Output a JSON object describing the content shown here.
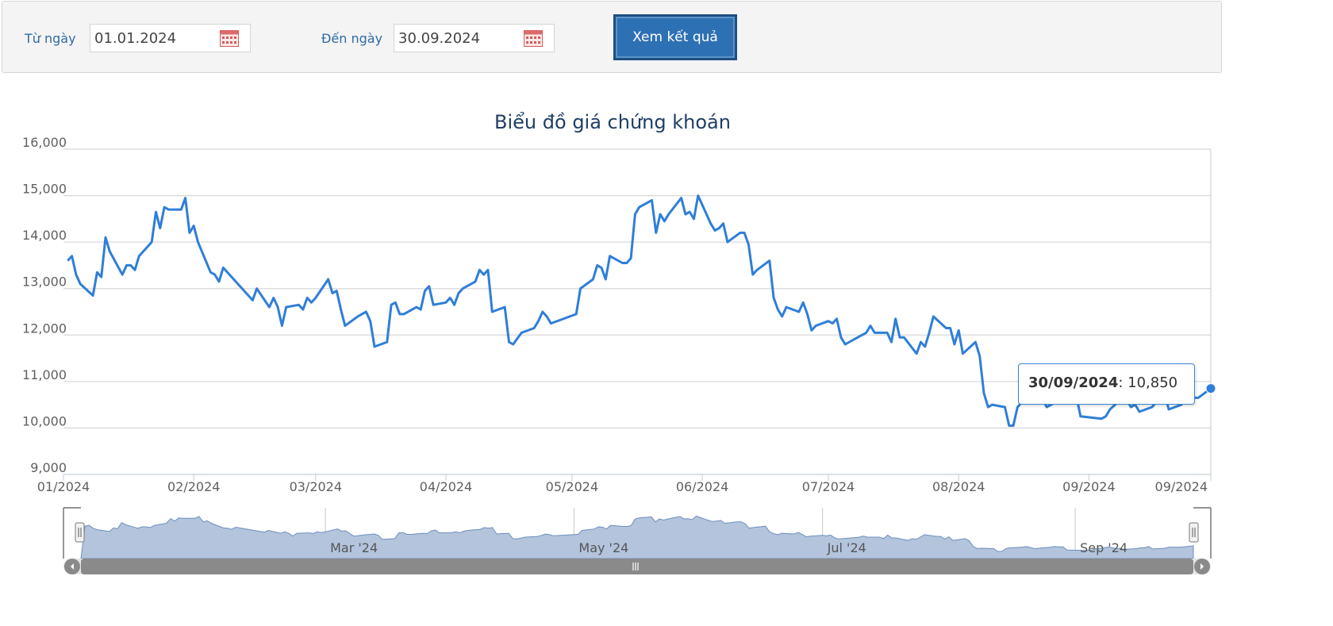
{
  "filter": {
    "from_label": "Từ ngày",
    "from_value": "01.01.2024",
    "to_label": "Đến ngày",
    "to_value": "30.09.2024",
    "submit_label": "Xem kết quả",
    "calendar_icon": "calendar-icon"
  },
  "tooltip": {
    "date": "30/09/2024",
    "separator": ":",
    "value": "10,850"
  },
  "navigator": {
    "labels": [
      "Mar '24",
      "May '24",
      "Jul '24",
      "Sep '24"
    ],
    "handle_icon": "grip-icon",
    "scroll_left_icon": "arrow-left-icon",
    "scroll_right_icon": "arrow-right-icon"
  },
  "colors": {
    "line": "#2f7ed8",
    "navigator_fill": "#b3c4dc",
    "title": "#1f3e63",
    "accent": "#2e70b4"
  },
  "chart_data": {
    "type": "line",
    "title": "Biểu đồ giá chứng khoán",
    "ylim": [
      9000,
      16000
    ],
    "yticks": [
      9000,
      10000,
      11000,
      12000,
      13000,
      14000,
      15000,
      16000
    ],
    "ytick_labels": [
      "9,000",
      "10,000",
      "11,000",
      "12,000",
      "13,000",
      "14,000",
      "15,000",
      "16,000"
    ],
    "xlim": [
      "2024-01-01",
      "2024-09-30"
    ],
    "xticks": [
      {
        "date": "2024-01-01",
        "label": "01/2024"
      },
      {
        "date": "2024-02-01",
        "label": "02/2024"
      },
      {
        "date": "2024-03-01",
        "label": "03/2024"
      },
      {
        "date": "2024-04-01",
        "label": "04/2024"
      },
      {
        "date": "2024-05-01",
        "label": "05/2024"
      },
      {
        "date": "2024-06-01",
        "label": "06/2024"
      },
      {
        "date": "2024-07-01",
        "label": "07/2024"
      },
      {
        "date": "2024-08-01",
        "label": "08/2024"
      },
      {
        "date": "2024-09-01",
        "label": "09/2024"
      },
      {
        "date": "2024-09-30",
        "label": "09/2024"
      }
    ],
    "grid": true,
    "legend": "none",
    "series": [
      {
        "dates": [
          "2024-01-02",
          "2024-01-03",
          "2024-01-04",
          "2024-01-05",
          "2024-01-08",
          "2024-01-09",
          "2024-01-10",
          "2024-01-11",
          "2024-01-12",
          "2024-01-15",
          "2024-01-16",
          "2024-01-17",
          "2024-01-18",
          "2024-01-19",
          "2024-01-22",
          "2024-01-23",
          "2024-01-24",
          "2024-01-25",
          "2024-01-26",
          "2024-01-29",
          "2024-01-30",
          "2024-01-31",
          "2024-02-01",
          "2024-02-02",
          "2024-02-05",
          "2024-02-06",
          "2024-02-07",
          "2024-02-08",
          "2024-02-15",
          "2024-02-16",
          "2024-02-19",
          "2024-02-20",
          "2024-02-21",
          "2024-02-22",
          "2024-02-23",
          "2024-02-26",
          "2024-02-27",
          "2024-02-28",
          "2024-02-29",
          "2024-03-01",
          "2024-03-04",
          "2024-03-05",
          "2024-03-06",
          "2024-03-07",
          "2024-03-08",
          "2024-03-11",
          "2024-03-12",
          "2024-03-13",
          "2024-03-14",
          "2024-03-15",
          "2024-03-18",
          "2024-03-19",
          "2024-03-20",
          "2024-03-21",
          "2024-03-22",
          "2024-03-25",
          "2024-03-26",
          "2024-03-27",
          "2024-03-28",
          "2024-03-29",
          "2024-04-01",
          "2024-04-02",
          "2024-04-03",
          "2024-04-04",
          "2024-04-05",
          "2024-04-08",
          "2024-04-09",
          "2024-04-10",
          "2024-04-11",
          "2024-04-12",
          "2024-04-15",
          "2024-04-16",
          "2024-04-17",
          "2024-04-19",
          "2024-04-22",
          "2024-04-23",
          "2024-04-24",
          "2024-04-25",
          "2024-04-26",
          "2024-05-02",
          "2024-05-03",
          "2024-05-06",
          "2024-05-07",
          "2024-05-08",
          "2024-05-09",
          "2024-05-10",
          "2024-05-13",
          "2024-05-14",
          "2024-05-15",
          "2024-05-16",
          "2024-05-17",
          "2024-05-20",
          "2024-05-21",
          "2024-05-22",
          "2024-05-23",
          "2024-05-24",
          "2024-05-27",
          "2024-05-28",
          "2024-05-29",
          "2024-05-30",
          "2024-05-31",
          "2024-06-03",
          "2024-06-04",
          "2024-06-05",
          "2024-06-06",
          "2024-06-07",
          "2024-06-10",
          "2024-06-11",
          "2024-06-12",
          "2024-06-13",
          "2024-06-14",
          "2024-06-17",
          "2024-06-18",
          "2024-06-19",
          "2024-06-20",
          "2024-06-21",
          "2024-06-24",
          "2024-06-25",
          "2024-06-26",
          "2024-06-27",
          "2024-06-28",
          "2024-07-01",
          "2024-07-02",
          "2024-07-03",
          "2024-07-04",
          "2024-07-05",
          "2024-07-08",
          "2024-07-09",
          "2024-07-10",
          "2024-07-11",
          "2024-07-12",
          "2024-07-15",
          "2024-07-16",
          "2024-07-17",
          "2024-07-18",
          "2024-07-19",
          "2024-07-22",
          "2024-07-23",
          "2024-07-24",
          "2024-07-25",
          "2024-07-26",
          "2024-07-29",
          "2024-07-30",
          "2024-07-31",
          "2024-08-01",
          "2024-08-02",
          "2024-08-05",
          "2024-08-06",
          "2024-08-07",
          "2024-08-08",
          "2024-08-09",
          "2024-08-12",
          "2024-08-13",
          "2024-08-14",
          "2024-08-15",
          "2024-08-16",
          "2024-08-19",
          "2024-08-20",
          "2024-08-21",
          "2024-08-22",
          "2024-08-23",
          "2024-08-26",
          "2024-08-27",
          "2024-08-28",
          "2024-08-29",
          "2024-08-30",
          "2024-09-04",
          "2024-09-05",
          "2024-09-06",
          "2024-09-09",
          "2024-09-10",
          "2024-09-11",
          "2024-09-12",
          "2024-09-13",
          "2024-09-16",
          "2024-09-17",
          "2024-09-18",
          "2024-09-19",
          "2024-09-20",
          "2024-09-23",
          "2024-09-24",
          "2024-09-25",
          "2024-09-26",
          "2024-09-27",
          "2024-09-30"
        ],
        "values": [
          13600,
          13700,
          13300,
          13100,
          12850,
          13350,
          13250,
          14100,
          13800,
          13300,
          13500,
          13500,
          13400,
          13700,
          14000,
          14650,
          14300,
          14750,
          14700,
          14700,
          14950,
          14200,
          14350,
          14000,
          13350,
          13300,
          13150,
          13450,
          12750,
          13000,
          12600,
          12800,
          12600,
          12200,
          12600,
          12650,
          12550,
          12800,
          12700,
          12800,
          13200,
          12900,
          12950,
          12550,
          12200,
          12400,
          12450,
          12500,
          12300,
          11750,
          11850,
          12650,
          12700,
          12450,
          12450,
          12600,
          12550,
          12950,
          13050,
          12650,
          12700,
          12800,
          12650,
          12900,
          13000,
          13150,
          13400,
          13300,
          13400,
          12500,
          12600,
          11850,
          11800,
          12050,
          12150,
          12300,
          12500,
          12400,
          12250,
          12450,
          13000,
          13200,
          13500,
          13450,
          13200,
          13700,
          13550,
          13550,
          13650,
          14600,
          14750,
          14900,
          14200,
          14600,
          14450,
          14600,
          14950,
          14600,
          14650,
          14500,
          15000,
          14400,
          14250,
          14300,
          14400,
          14000,
          14200,
          14200,
          13950,
          13300,
          13400,
          13600,
          12800,
          12550,
          12400,
          12600,
          12500,
          12700,
          12450,
          12100,
          12200,
          12300,
          12250,
          12350,
          11950,
          11800,
          11950,
          12000,
          12050,
          12200,
          12050,
          12050,
          11850,
          12350,
          11950,
          11950,
          11600,
          11850,
          11750,
          12050,
          12400,
          12150,
          12150,
          11800,
          12100,
          11600,
          11850,
          11550,
          10750,
          10450,
          10500,
          10450,
          10050,
          10050,
          10450,
          10550,
          10650,
          10750,
          10600,
          10450,
          10500,
          10650,
          10750,
          10700,
          10700,
          10250,
          10200,
          10250,
          10400,
          10650,
          10600,
          10450,
          10500,
          10350,
          10450,
          10550,
          10550,
          10750,
          10400,
          10500,
          10650,
          10650,
          10650,
          10650,
          10850
        ]
      }
    ]
  }
}
